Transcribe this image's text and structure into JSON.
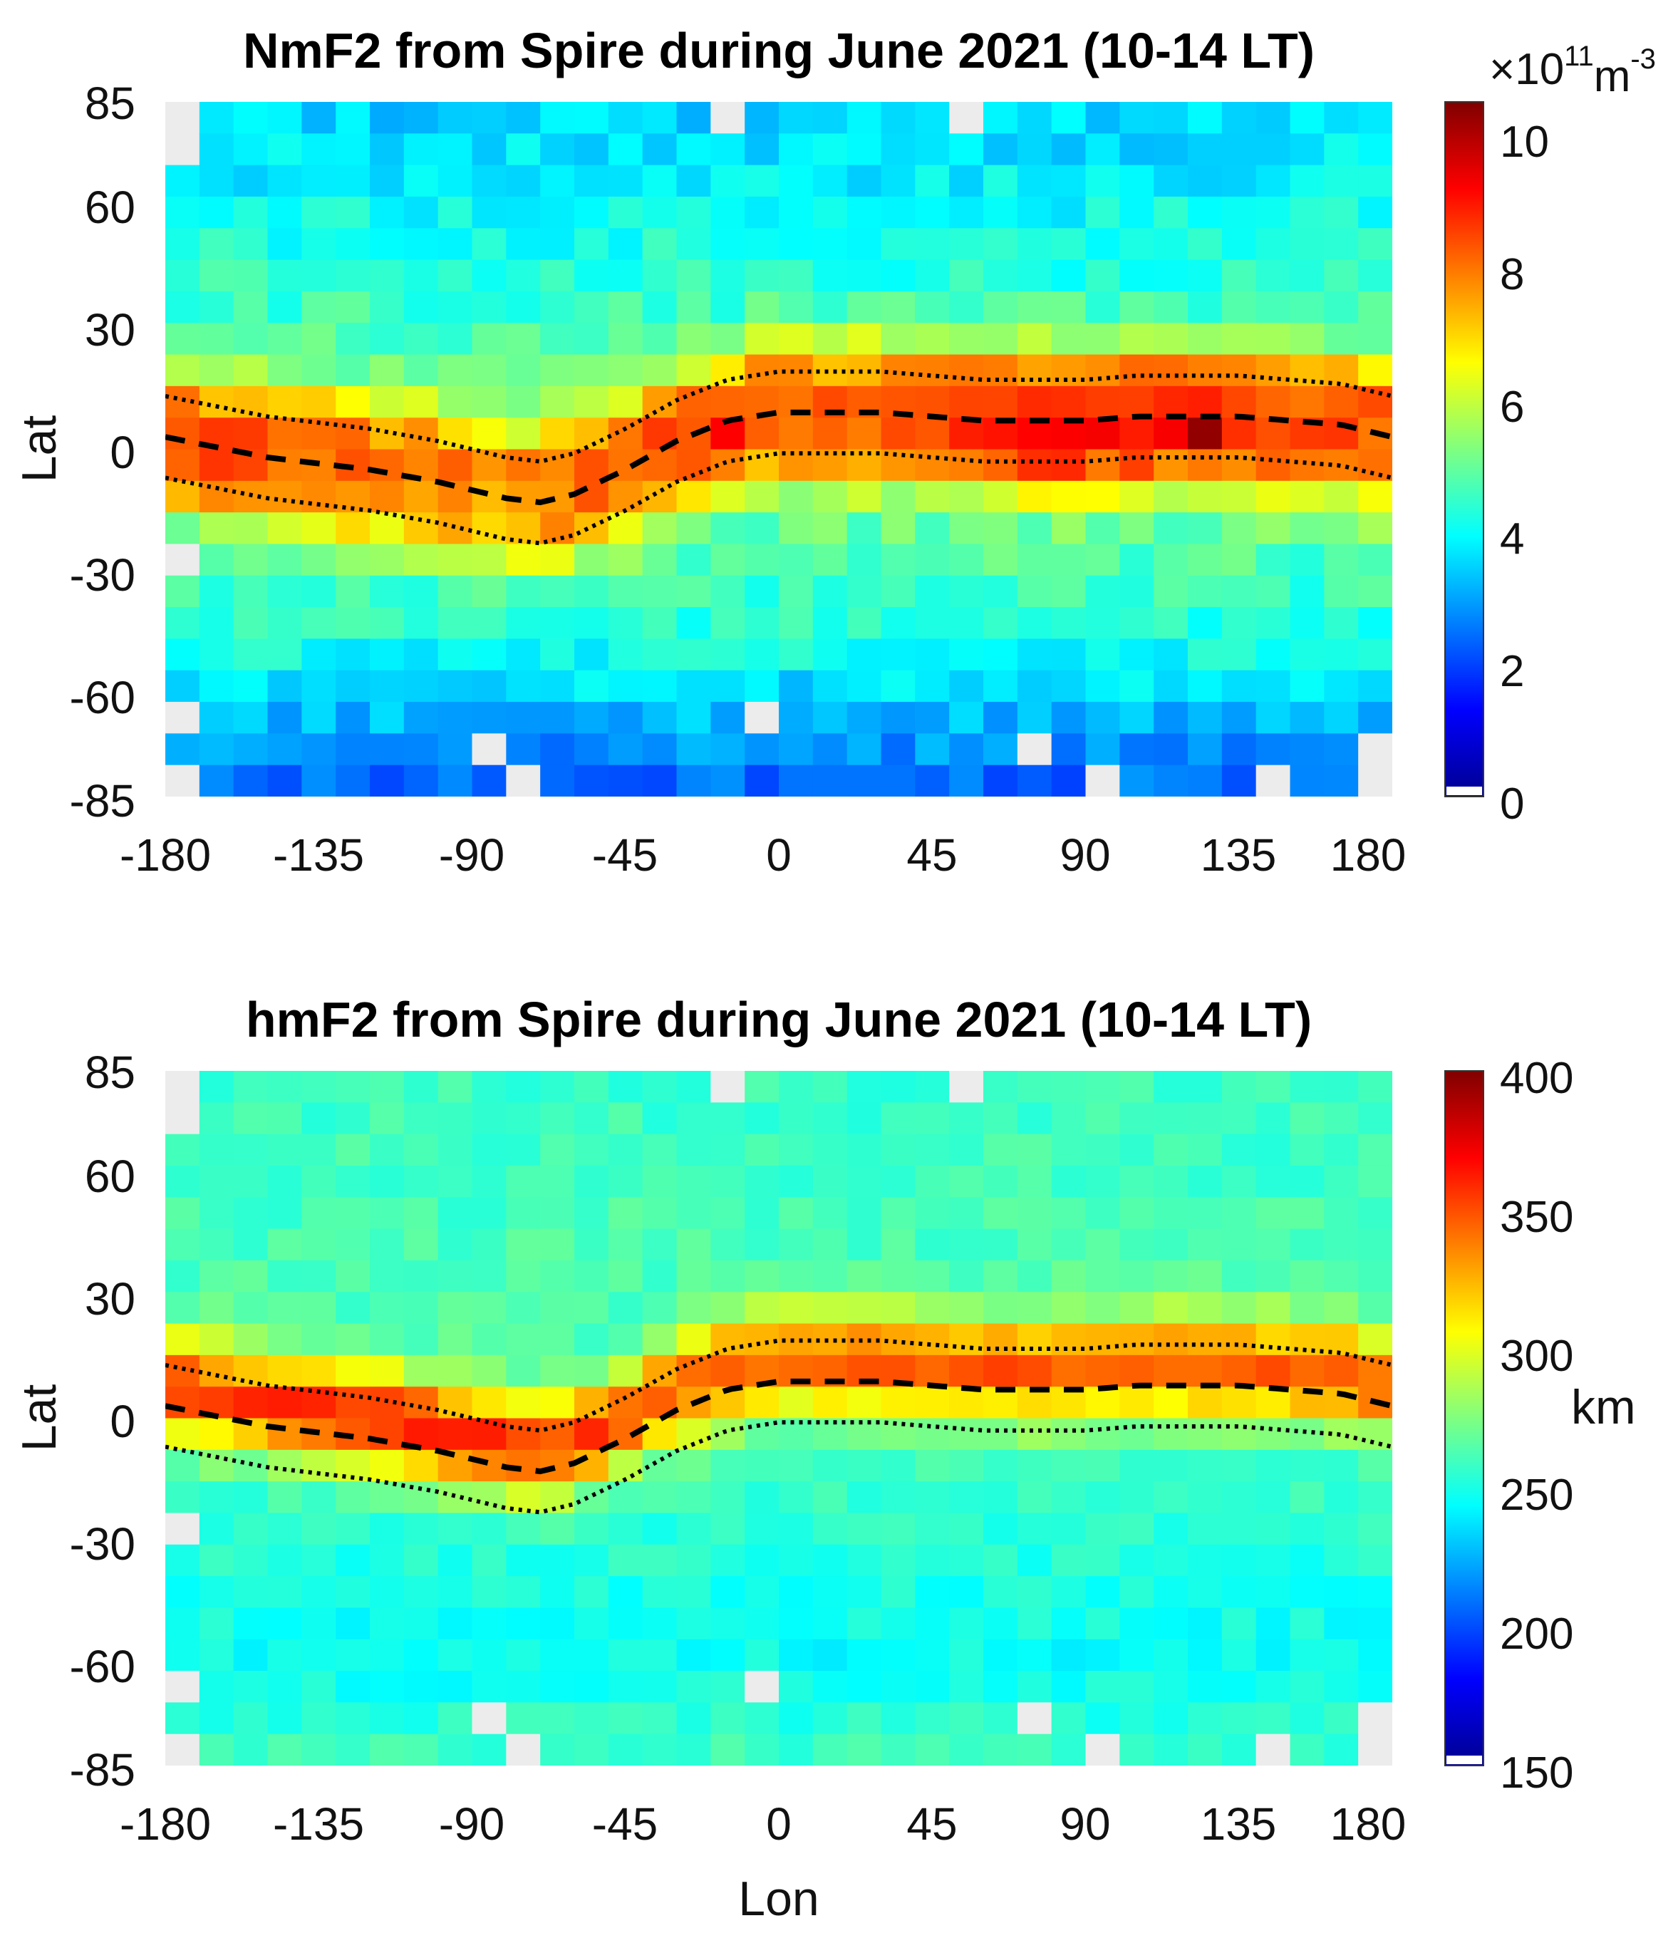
{
  "chart_data": [
    {
      "type": "heatmap",
      "title": "NmF2 from Spire during June 2021 (10-14 LT)",
      "xlabel": "",
      "ylabel": "Lat",
      "xlim": [
        -180,
        180
      ],
      "ylim": [
        -85,
        85
      ],
      "xticks": [
        "-180",
        "-135",
        "-90",
        "-45",
        "0",
        "45",
        "90",
        "135",
        "180"
      ],
      "yticks": [
        "85",
        "60",
        "30",
        "0",
        "-30",
        "-60",
        "-85"
      ],
      "colorbar": {
        "range": [
          0,
          10.5
        ],
        "ticks": [
          "0",
          "2",
          "4",
          "6",
          "8",
          "10"
        ],
        "multiplier": "×10",
        "exponent": "11",
        "unit": "m",
        "unit_exponent": "-3",
        "label": ""
      },
      "field": "nmf2",
      "lines": [
        {
          "name": "magnetic equator",
          "style": "dashed"
        },
        {
          "name": "equator +10° dip",
          "style": "dotted"
        },
        {
          "name": "equator -10° dip",
          "style": "dotted"
        }
      ]
    },
    {
      "type": "heatmap",
      "title": "hmF2 from Spire during June 2021 (10-14 LT)",
      "xlabel": "Lon",
      "ylabel": "Lat",
      "xlim": [
        -180,
        180
      ],
      "ylim": [
        -85,
        85
      ],
      "xticks": [
        "-180",
        "-135",
        "-90",
        "-45",
        "0",
        "45",
        "90",
        "135",
        "180"
      ],
      "yticks": [
        "85",
        "60",
        "30",
        "0",
        "-30",
        "-60",
        "-85"
      ],
      "colorbar": {
        "range": [
          150,
          400
        ],
        "ticks": [
          "150",
          "200",
          "250",
          "300",
          "350",
          "400"
        ],
        "multiplier": "",
        "exponent": "",
        "unit": "",
        "unit_exponent": "",
        "label": "km"
      },
      "field": "hmf2",
      "lines": [
        {
          "name": "magnetic equator",
          "style": "dashed"
        },
        {
          "name": "equator +10° dip",
          "style": "dotted"
        },
        {
          "name": "equator -10° dip",
          "style": "dotted"
        }
      ]
    }
  ],
  "magnetic_equator": {
    "lon": [
      -180,
      -150,
      -120,
      -100,
      -80,
      -70,
      -60,
      -45,
      -30,
      -15,
      0,
      15,
      30,
      45,
      60,
      75,
      90,
      105,
      120,
      135,
      150,
      165,
      180
    ],
    "lat": [
      3,
      -2,
      -5,
      -8,
      -12,
      -13,
      -11,
      -5,
      2,
      7,
      9,
      9,
      9,
      8,
      7,
      7,
      7,
      8,
      8,
      8,
      7,
      6,
      3
    ]
  },
  "dip_offset_deg": 10
}
